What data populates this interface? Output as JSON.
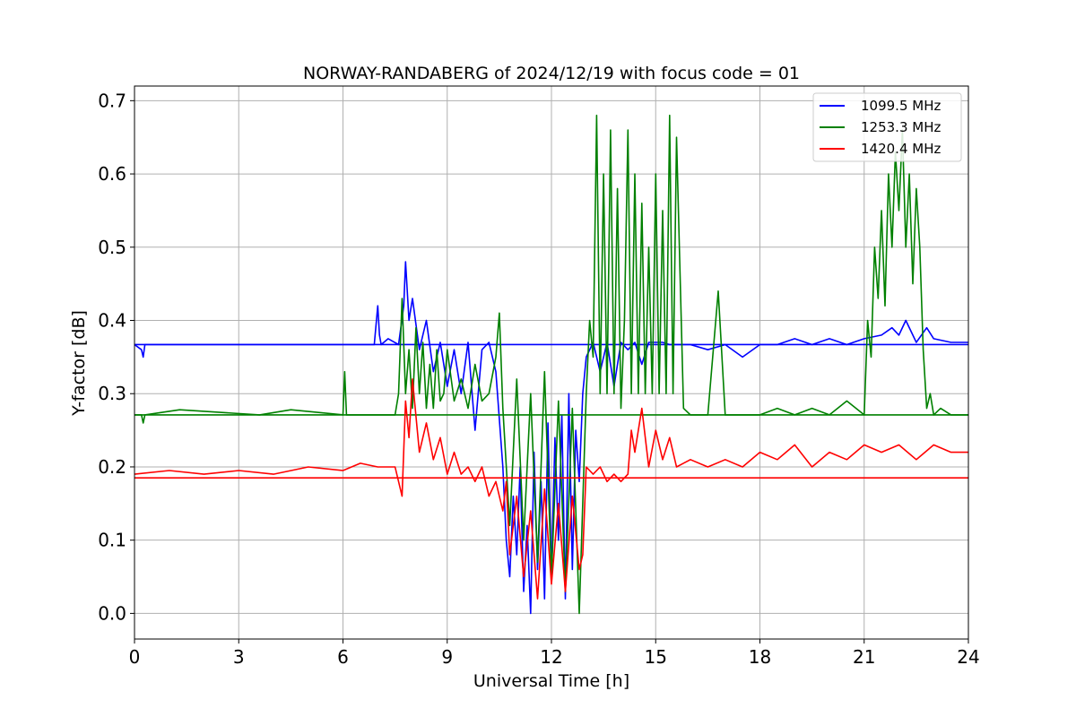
{
  "chart_data": {
    "type": "line",
    "title": "NORWAY-RANDABERG of 2024/12/19 with focus code = 01",
    "xlabel": "Universal Time [h]",
    "ylabel": "Y-factor [dB]",
    "xlim": [
      0,
      24
    ],
    "ylim": [
      -0.035,
      0.72
    ],
    "xticks": [
      0,
      3,
      6,
      9,
      12,
      15,
      18,
      21,
      24
    ],
    "xtick_labels": [
      "0",
      "3",
      "6",
      "9",
      "12",
      "15",
      "18",
      "21",
      "24"
    ],
    "yticks": [
      0.0,
      0.1,
      0.2,
      0.3,
      0.4,
      0.5,
      0.6,
      0.7
    ],
    "ytick_labels": [
      "0.0",
      "0.1",
      "0.2",
      "0.3",
      "0.4",
      "0.5",
      "0.6",
      "0.7"
    ],
    "grid": true,
    "legend_position": "top-right",
    "series": [
      {
        "name": "1099.5 MHz",
        "color": "#0000ff",
        "baseline": 0.367,
        "x": [
          0,
          0.2,
          0.25,
          0.3,
          1.5,
          3.0,
          5.0,
          6.9,
          7.0,
          7.05,
          7.1,
          7.3,
          7.6,
          7.75,
          7.8,
          7.9,
          8.0,
          8.2,
          8.4,
          8.6,
          8.8,
          9.0,
          9.2,
          9.4,
          9.6,
          9.8,
          10.0,
          10.2,
          10.4,
          10.6,
          10.7,
          10.8,
          10.9,
          11.0,
          11.1,
          11.2,
          11.3,
          11.4,
          11.5,
          11.6,
          11.7,
          11.8,
          11.9,
          12.0,
          12.1,
          12.2,
          12.3,
          12.4,
          12.5,
          12.6,
          12.7,
          12.8,
          12.9,
          13.0,
          13.2,
          13.4,
          13.6,
          13.8,
          14.0,
          14.2,
          14.4,
          14.6,
          14.8,
          15.0,
          15.2,
          15.4,
          15.6,
          16.0,
          16.5,
          17.0,
          17.5,
          18.0,
          18.5,
          19.0,
          19.5,
          20.0,
          20.5,
          21.0,
          21.5,
          21.8,
          22.0,
          22.2,
          22.5,
          22.8,
          23.0,
          23.5,
          24.0
        ],
        "y": [
          0.367,
          0.36,
          0.35,
          0.367,
          0.367,
          0.367,
          0.367,
          0.367,
          0.42,
          0.38,
          0.367,
          0.375,
          0.367,
          0.42,
          0.48,
          0.4,
          0.43,
          0.36,
          0.4,
          0.33,
          0.37,
          0.31,
          0.36,
          0.3,
          0.37,
          0.25,
          0.36,
          0.37,
          0.33,
          0.2,
          0.1,
          0.05,
          0.16,
          0.08,
          0.2,
          0.03,
          0.12,
          0.0,
          0.22,
          0.06,
          0.18,
          0.02,
          0.26,
          0.05,
          0.24,
          0.1,
          0.27,
          0.02,
          0.3,
          0.06,
          0.25,
          0.18,
          0.3,
          0.35,
          0.37,
          0.33,
          0.37,
          0.31,
          0.37,
          0.36,
          0.37,
          0.34,
          0.37,
          0.37,
          0.37,
          0.367,
          0.367,
          0.367,
          0.36,
          0.367,
          0.35,
          0.367,
          0.367,
          0.375,
          0.367,
          0.375,
          0.367,
          0.375,
          0.38,
          0.39,
          0.38,
          0.4,
          0.37,
          0.39,
          0.375,
          0.37,
          0.37
        ]
      },
      {
        "name": "1253.3 MHz",
        "color": "#008000",
        "baseline": 0.271,
        "x": [
          0,
          0.2,
          0.25,
          0.3,
          1.3,
          3.6,
          4.5,
          6.0,
          6.05,
          6.1,
          6.5,
          7.0,
          7.5,
          7.6,
          7.7,
          7.8,
          7.9,
          8.0,
          8.1,
          8.2,
          8.3,
          8.4,
          8.5,
          8.6,
          8.7,
          8.8,
          8.9,
          9.0,
          9.2,
          9.4,
          9.6,
          9.8,
          10.0,
          10.2,
          10.4,
          10.5,
          10.6,
          10.8,
          11.0,
          11.2,
          11.4,
          11.6,
          11.8,
          12.0,
          12.2,
          12.4,
          12.6,
          12.8,
          13.0,
          13.1,
          13.2,
          13.3,
          13.4,
          13.5,
          13.6,
          13.7,
          13.8,
          13.9,
          14.0,
          14.1,
          14.2,
          14.3,
          14.4,
          14.5,
          14.6,
          14.7,
          14.8,
          14.9,
          15.0,
          15.1,
          15.2,
          15.3,
          15.4,
          15.5,
          15.6,
          15.8,
          16.0,
          16.5,
          16.8,
          17.0,
          17.5,
          18.0,
          18.5,
          19.0,
          19.5,
          20.0,
          20.5,
          21.0,
          21.1,
          21.2,
          21.3,
          21.4,
          21.5,
          21.6,
          21.7,
          21.8,
          21.9,
          22.0,
          22.1,
          22.2,
          22.3,
          22.4,
          22.5,
          22.6,
          22.7,
          22.8,
          22.9,
          23.0,
          23.2,
          23.5,
          24.0
        ],
        "y": [
          0.271,
          0.271,
          0.26,
          0.271,
          0.278,
          0.271,
          0.278,
          0.271,
          0.33,
          0.271,
          0.271,
          0.271,
          0.271,
          0.3,
          0.43,
          0.3,
          0.36,
          0.28,
          0.39,
          0.3,
          0.37,
          0.28,
          0.34,
          0.28,
          0.36,
          0.29,
          0.3,
          0.36,
          0.29,
          0.32,
          0.28,
          0.34,
          0.29,
          0.3,
          0.35,
          0.41,
          0.28,
          0.12,
          0.32,
          0.1,
          0.3,
          0.07,
          0.33,
          0.05,
          0.29,
          0.03,
          0.28,
          0.0,
          0.3,
          0.4,
          0.35,
          0.68,
          0.3,
          0.6,
          0.3,
          0.66,
          0.3,
          0.58,
          0.28,
          0.4,
          0.66,
          0.3,
          0.6,
          0.3,
          0.56,
          0.3,
          0.5,
          0.3,
          0.6,
          0.3,
          0.55,
          0.3,
          0.68,
          0.3,
          0.65,
          0.28,
          0.271,
          0.271,
          0.44,
          0.271,
          0.271,
          0.271,
          0.28,
          0.271,
          0.28,
          0.271,
          0.29,
          0.271,
          0.4,
          0.35,
          0.5,
          0.43,
          0.55,
          0.42,
          0.6,
          0.5,
          0.63,
          0.55,
          0.66,
          0.5,
          0.6,
          0.45,
          0.58,
          0.5,
          0.36,
          0.28,
          0.3,
          0.271,
          0.28,
          0.271,
          0.271
        ]
      },
      {
        "name": "1420.4 MHz",
        "color": "#ff0000",
        "baseline": 0.185,
        "x": [
          0,
          1.0,
          2.0,
          3.0,
          4.0,
          5.0,
          6.0,
          6.5,
          7.0,
          7.5,
          7.7,
          7.8,
          7.9,
          8.0,
          8.2,
          8.4,
          8.6,
          8.8,
          9.0,
          9.2,
          9.4,
          9.6,
          9.8,
          10.0,
          10.2,
          10.4,
          10.6,
          10.7,
          10.8,
          11.0,
          11.2,
          11.4,
          11.6,
          11.8,
          12.0,
          12.2,
          12.4,
          12.6,
          12.8,
          12.9,
          13.0,
          13.2,
          13.4,
          13.6,
          13.8,
          14.0,
          14.2,
          14.3,
          14.4,
          14.6,
          14.8,
          15.0,
          15.2,
          15.4,
          15.6,
          16.0,
          16.5,
          17.0,
          17.5,
          18.0,
          18.5,
          19.0,
          19.5,
          20.0,
          20.5,
          21.0,
          21.5,
          22.0,
          22.5,
          23.0,
          23.5,
          24.0
        ],
        "y": [
          0.19,
          0.195,
          0.19,
          0.195,
          0.19,
          0.2,
          0.195,
          0.205,
          0.2,
          0.2,
          0.16,
          0.29,
          0.24,
          0.32,
          0.22,
          0.26,
          0.21,
          0.24,
          0.19,
          0.22,
          0.19,
          0.2,
          0.18,
          0.2,
          0.16,
          0.18,
          0.14,
          0.18,
          0.08,
          0.16,
          0.05,
          0.14,
          0.02,
          0.17,
          0.04,
          0.15,
          0.03,
          0.16,
          0.06,
          0.08,
          0.2,
          0.19,
          0.2,
          0.18,
          0.19,
          0.18,
          0.19,
          0.25,
          0.22,
          0.28,
          0.2,
          0.25,
          0.21,
          0.24,
          0.2,
          0.21,
          0.2,
          0.21,
          0.2,
          0.22,
          0.21,
          0.23,
          0.2,
          0.22,
          0.21,
          0.23,
          0.22,
          0.23,
          0.21,
          0.23,
          0.22,
          0.22
        ]
      }
    ]
  }
}
